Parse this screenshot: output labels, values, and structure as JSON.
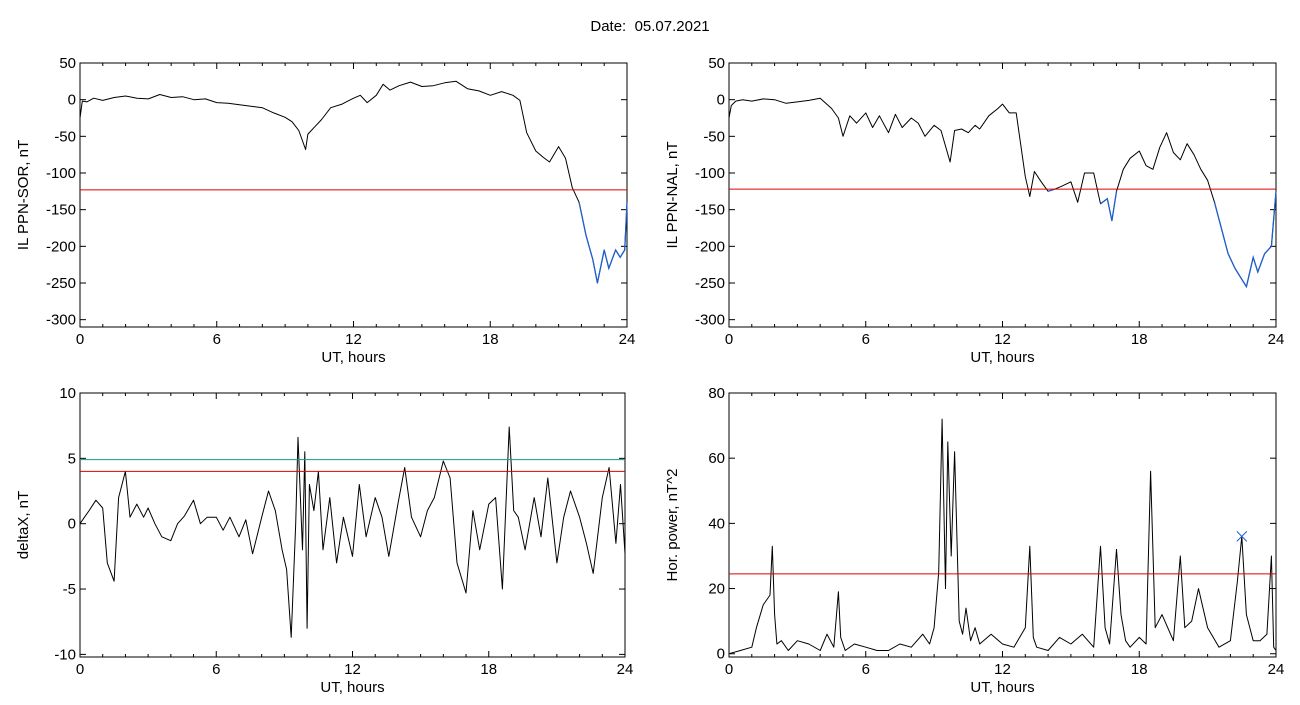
{
  "figure": {
    "date_label": "Date:",
    "date_value": "05.07.2021"
  },
  "colors": {
    "series": "#000000",
    "threshold": "#dd0000",
    "below_threshold": "#1f5fd0",
    "teal_threshold": "#1a9a8a",
    "marker": "#1f5fd0"
  },
  "chart_data": [
    {
      "id": "il-ppn-sor",
      "type": "line",
      "xlabel": "UT, hours",
      "ylabel": "IL PPN-SOR, nT",
      "xlim": [
        0,
        24
      ],
      "ylim": [
        -310,
        50
      ],
      "xticks": [
        0,
        6,
        12,
        18,
        24
      ],
      "yticks": [
        50,
        0,
        -50,
        -100,
        -150,
        -200,
        -250,
        -300
      ],
      "thresholds": [
        {
          "y": -123,
          "color": "red"
        }
      ],
      "below_threshold_color": "blue",
      "series": [
        {
          "x": [
            0,
            0.1,
            0.3,
            0.6,
            1.0,
            1.5,
            2.0,
            2.5,
            3.0,
            3.5,
            4.0,
            4.5,
            5.0,
            5.5,
            6.0,
            6.5,
            7.0,
            7.5,
            8.0,
            8.5,
            9.0,
            9.3,
            9.6,
            9.9,
            10.0,
            10.3,
            10.6,
            11.0,
            11.5,
            12.0,
            12.3,
            12.6,
            13.0,
            13.3,
            13.6,
            14.0,
            14.5,
            15.0,
            15.5,
            16.0,
            16.5,
            17.0,
            17.5,
            18.0,
            18.5,
            19.0,
            19.3,
            19.6,
            20.0,
            20.3,
            20.6,
            21.0,
            21.3,
            21.6,
            21.9,
            22.2,
            22.5,
            22.7,
            23.0,
            23.2,
            23.5,
            23.7,
            23.9,
            24.0
          ],
          "values": [
            -25,
            -2,
            -3,
            2,
            -1,
            3,
            5,
            2,
            1,
            7,
            3,
            4,
            0,
            1,
            -4,
            -5,
            -7,
            -9,
            -11,
            -18,
            -24,
            -30,
            -42,
            -68,
            -47,
            -37,
            -27,
            -11,
            -6,
            2,
            6,
            -4,
            6,
            21,
            13,
            19,
            24,
            18,
            19,
            23,
            25,
            15,
            12,
            6,
            11,
            6,
            -1,
            -45,
            -70,
            -78,
            -85,
            -64,
            -80,
            -120,
            -140,
            -185,
            -218,
            -250,
            -205,
            -230,
            -205,
            -215,
            -205,
            -140
          ]
        }
      ]
    },
    {
      "id": "il-ppn-nal",
      "type": "line",
      "xlabel": "UT, hours",
      "ylabel": "IL PPN-NAL, nT",
      "xlim": [
        0,
        24
      ],
      "ylim": [
        -310,
        50
      ],
      "xticks": [
        0,
        6,
        12,
        18,
        24
      ],
      "yticks": [
        50,
        0,
        -50,
        -100,
        -150,
        -200,
        -250,
        -300
      ],
      "thresholds": [
        {
          "y": -122,
          "color": "red"
        }
      ],
      "below_threshold_color": "blue",
      "series": [
        {
          "x": [
            0,
            0.1,
            0.3,
            0.6,
            1.0,
            1.5,
            2.0,
            2.5,
            3.0,
            3.5,
            4.0,
            4.5,
            4.8,
            5.0,
            5.3,
            5.6,
            6.0,
            6.3,
            6.6,
            7.0,
            7.3,
            7.6,
            8.0,
            8.3,
            8.6,
            9.0,
            9.3,
            9.7,
            9.9,
            10.2,
            10.5,
            10.8,
            11.0,
            11.4,
            11.8,
            12.0,
            12.3,
            12.6,
            13.0,
            13.2,
            13.4,
            13.7,
            14.0,
            14.3,
            14.6,
            15.0,
            15.3,
            15.6,
            16.0,
            16.3,
            16.6,
            16.8,
            17.0,
            17.3,
            17.6,
            18.0,
            18.3,
            18.6,
            18.9,
            19.2,
            19.5,
            19.8,
            20.1,
            20.4,
            20.7,
            21.0,
            21.3,
            21.6,
            21.9,
            22.2,
            22.5,
            22.7,
            23.0,
            23.2,
            23.5,
            23.8,
            24.0
          ],
          "values": [
            -25,
            -8,
            -2,
            0,
            -2,
            1,
            0,
            -5,
            -3,
            -1,
            2,
            -12,
            -25,
            -50,
            -22,
            -32,
            -18,
            -38,
            -22,
            -45,
            -20,
            -38,
            -25,
            -32,
            -50,
            -35,
            -42,
            -85,
            -42,
            -40,
            -45,
            -35,
            -40,
            -22,
            -12,
            -6,
            -18,
            -18,
            -105,
            -132,
            -98,
            -112,
            -125,
            -122,
            -118,
            -112,
            -140,
            -100,
            -100,
            -142,
            -135,
            -165,
            -125,
            -95,
            -80,
            -70,
            -90,
            -95,
            -65,
            -45,
            -72,
            -82,
            -60,
            -75,
            -95,
            -110,
            -140,
            -175,
            -210,
            -230,
            -245,
            -255,
            -215,
            -235,
            -210,
            -200,
            -125
          ]
        }
      ]
    },
    {
      "id": "deltax",
      "type": "line",
      "xlabel": "UT, hours",
      "ylabel": "deltaX, nT",
      "xlim": [
        0,
        24
      ],
      "ylim": [
        -10.2,
        10
      ],
      "xticks": [
        0,
        6,
        12,
        18,
        24
      ],
      "yticks": [
        10,
        5,
        0,
        -5,
        -10
      ],
      "thresholds": [
        {
          "y": 4.9,
          "color": "teal"
        },
        {
          "y": 4.0,
          "color": "red"
        }
      ],
      "series": [
        {
          "x": [
            0,
            0.2,
            0.4,
            0.7,
            1.0,
            1.2,
            1.5,
            1.7,
            2.0,
            2.2,
            2.5,
            2.8,
            3.0,
            3.3,
            3.6,
            4.0,
            4.3,
            4.6,
            5.0,
            5.3,
            5.6,
            6.0,
            6.3,
            6.6,
            7.0,
            7.3,
            7.6,
            8.0,
            8.3,
            8.6,
            8.9,
            9.1,
            9.3,
            9.5,
            9.6,
            9.8,
            9.9,
            10.0,
            10.1,
            10.3,
            10.5,
            10.7,
            11.0,
            11.3,
            11.6,
            12.0,
            12.3,
            12.6,
            13.0,
            13.3,
            13.6,
            14.0,
            14.3,
            14.6,
            15.0,
            15.3,
            15.6,
            16.0,
            16.3,
            16.6,
            17.0,
            17.3,
            17.6,
            18.0,
            18.3,
            18.6,
            18.9,
            19.1,
            19.3,
            19.6,
            20.0,
            20.3,
            20.6,
            21.0,
            21.3,
            21.6,
            22.0,
            22.3,
            22.6,
            23.0,
            23.3,
            23.6,
            23.8,
            24.0
          ],
          "values": [
            0.0,
            0.5,
            1.0,
            1.8,
            1.2,
            -3.0,
            -4.4,
            2.0,
            4.0,
            0.5,
            1.5,
            0.5,
            1.2,
            0.0,
            -1.0,
            -1.3,
            0.0,
            0.6,
            1.8,
            0.0,
            0.5,
            0.5,
            -0.5,
            0.5,
            -1.0,
            0.3,
            -2.3,
            0.5,
            2.5,
            1.0,
            -2.0,
            -3.5,
            -8.7,
            0.0,
            6.6,
            -2.0,
            5.5,
            -8.0,
            3.0,
            1.0,
            4.0,
            -2.0,
            2.0,
            -3.0,
            0.5,
            -2.5,
            3.0,
            -1.0,
            2.0,
            0.5,
            -2.5,
            1.5,
            4.3,
            0.5,
            -1.0,
            1.0,
            2.0,
            4.8,
            3.5,
            -3.0,
            -5.3,
            1.0,
            -2.0,
            1.5,
            2.0,
            -5.0,
            7.4,
            1.0,
            0.5,
            -2.0,
            2.0,
            -1.0,
            3.5,
            -3.0,
            0.5,
            2.5,
            0.5,
            -1.5,
            -3.8,
            2.0,
            4.3,
            -1.5,
            3.0,
            -2.3
          ]
        }
      ]
    },
    {
      "id": "hor-power",
      "type": "line",
      "xlabel": "UT, hours",
      "ylabel": "Hor. power, nT^2",
      "xlim": [
        0,
        24
      ],
      "ylim": [
        -1,
        80
      ],
      "xticks": [
        0,
        6,
        12,
        18,
        24
      ],
      "yticks": [
        80,
        60,
        40,
        20,
        0
      ],
      "thresholds": [
        {
          "y": 24.5,
          "color": "red"
        }
      ],
      "markers": [
        {
          "x": 22.5,
          "y": 36,
          "shape": "x",
          "color": "blue"
        }
      ],
      "series": [
        {
          "x": [
            0,
            0.5,
            1.0,
            1.2,
            1.5,
            1.8,
            1.9,
            2.0,
            2.1,
            2.3,
            2.6,
            3.0,
            3.5,
            4.0,
            4.3,
            4.6,
            4.8,
            4.9,
            5.1,
            5.5,
            6.0,
            6.5,
            7.0,
            7.5,
            8.0,
            8.5,
            8.8,
            9.0,
            9.2,
            9.35,
            9.5,
            9.6,
            9.75,
            9.9,
            10.1,
            10.25,
            10.4,
            10.6,
            10.8,
            11.0,
            11.5,
            12.0,
            12.5,
            13.0,
            13.2,
            13.35,
            13.5,
            14.0,
            14.5,
            15.0,
            15.5,
            16.0,
            16.3,
            16.5,
            16.7,
            17.0,
            17.2,
            17.4,
            17.6,
            18.0,
            18.3,
            18.5,
            18.7,
            19.0,
            19.5,
            19.8,
            20.0,
            20.3,
            20.6,
            21.0,
            21.5,
            22.0,
            22.3,
            22.5,
            22.7,
            23.0,
            23.3,
            23.6,
            23.8,
            23.9,
            24.0
          ],
          "values": [
            0,
            1,
            2,
            8,
            15,
            18,
            33,
            12,
            3,
            4,
            1,
            4,
            3,
            1,
            6,
            2,
            19,
            5,
            1,
            3,
            2,
            1,
            1,
            3,
            2,
            6,
            3,
            8,
            25,
            72,
            20,
            65,
            30,
            62,
            10,
            6,
            14,
            4,
            8,
            3,
            6,
            3,
            2,
            8,
            33,
            5,
            2,
            1,
            5,
            3,
            6,
            2,
            33,
            8,
            3,
            32,
            12,
            4,
            2,
            5,
            3,
            56,
            8,
            12,
            4,
            30,
            8,
            10,
            20,
            8,
            2,
            4,
            22,
            36,
            12,
            4,
            4,
            6,
            30,
            2,
            1
          ]
        }
      ]
    }
  ]
}
